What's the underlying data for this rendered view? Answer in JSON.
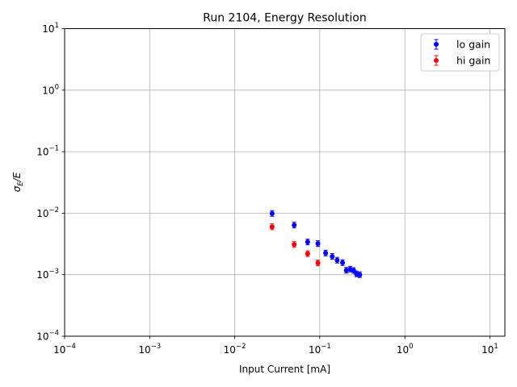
{
  "chart_data": {
    "type": "scatter",
    "title": "Run 2104, Energy Resolution",
    "xlabel": "Input Current [mA]",
    "ylabel": "σE/E",
    "xscale": "log",
    "yscale": "log",
    "xlim": [
      0.0001,
      15
    ],
    "ylim": [
      0.0001,
      10
    ],
    "grid": true,
    "legend_position": "top-right",
    "x_ticks": [
      {
        "base": "10",
        "exp": "−4",
        "value": 0.0001
      },
      {
        "base": "10",
        "exp": "−3",
        "value": 0.001
      },
      {
        "base": "10",
        "exp": "−2",
        "value": 0.01
      },
      {
        "base": "10",
        "exp": "−1",
        "value": 0.1
      },
      {
        "base": "10",
        "exp": "0",
        "value": 1
      },
      {
        "base": "10",
        "exp": "1",
        "value": 10
      }
    ],
    "y_ticks": [
      {
        "base": "10",
        "exp": "−4",
        "value": 0.0001
      },
      {
        "base": "10",
        "exp": "−3",
        "value": 0.001
      },
      {
        "base": "10",
        "exp": "−2",
        "value": 0.01
      },
      {
        "base": "10",
        "exp": "−1",
        "value": 0.1
      },
      {
        "base": "10",
        "exp": "0",
        "value": 1
      },
      {
        "base": "10",
        "exp": "1",
        "value": 10
      }
    ],
    "series": [
      {
        "name": "lo gain",
        "color": "#0000ff",
        "x": [
          0.0275,
          0.05,
          0.072,
          0.095,
          0.117,
          0.14,
          0.16,
          0.185,
          0.205,
          0.228,
          0.25,
          0.27,
          0.295
        ],
        "y": [
          0.0099,
          0.0064,
          0.0034,
          0.0032,
          0.00225,
          0.00198,
          0.00172,
          0.00157,
          0.00118,
          0.00123,
          0.00117,
          0.00103,
          0.001
        ]
      },
      {
        "name": "hi gain",
        "color": "#ff0000",
        "x": [
          0.0275,
          0.05,
          0.072,
          0.095
        ],
        "y": [
          0.006,
          0.0031,
          0.0022,
          0.00155
        ]
      }
    ]
  }
}
